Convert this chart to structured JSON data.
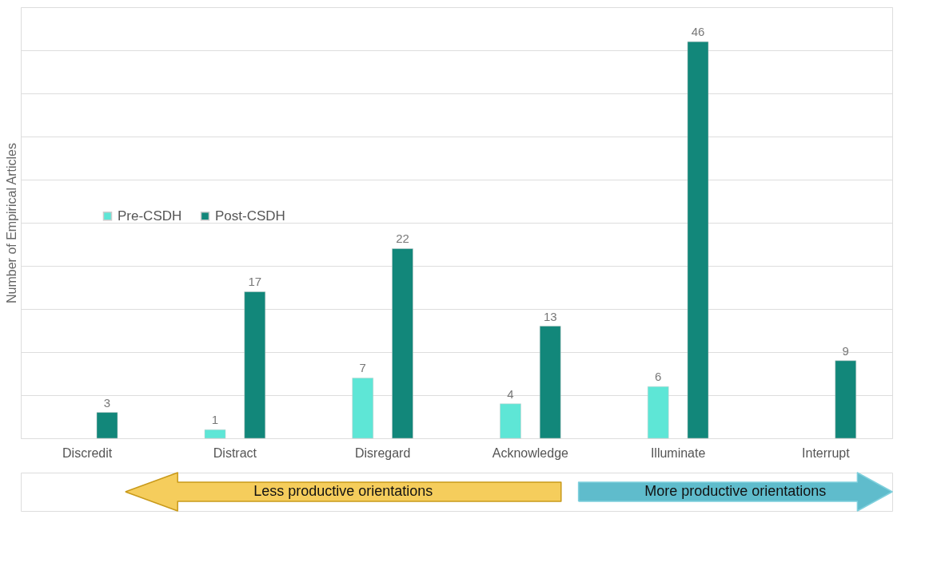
{
  "chart_data": {
    "type": "bar",
    "ylabel": "Number of Empirical Articles",
    "categories": [
      "Discredit",
      "Distract",
      "Disregard",
      "Acknowledge",
      "Illuminate",
      "Interrupt"
    ],
    "series": [
      {
        "name": "Pre-CSDH",
        "color": "#5ee6d6",
        "values": [
          null,
          1,
          7,
          4,
          6,
          null
        ]
      },
      {
        "name": "Post-CSDH",
        "color": "#12877a",
        "values": [
          3,
          17,
          22,
          13,
          46,
          9
        ]
      }
    ],
    "ylim": [
      0,
      50
    ],
    "yticks": [
      {
        "value": 0,
        "label": null
      },
      {
        "value": 5,
        "label": null
      },
      {
        "value": 10,
        "label": null
      },
      {
        "value": 15,
        "label": null
      },
      {
        "value": 20,
        "label": null
      },
      {
        "value": 25,
        "label": null
      },
      {
        "value": 30,
        "label": null
      },
      {
        "value": 35,
        "label": null
      },
      {
        "value": 40,
        "label": null
      },
      {
        "value": 45,
        "label": null
      },
      {
        "value": 50,
        "label": null
      }
    ],
    "tick_labels": "x",
    "grid": "y",
    "data_labels": true,
    "legend": "left",
    "annotations": [
      "Less productive orientations",
      "More productive orientations"
    ]
  }
}
